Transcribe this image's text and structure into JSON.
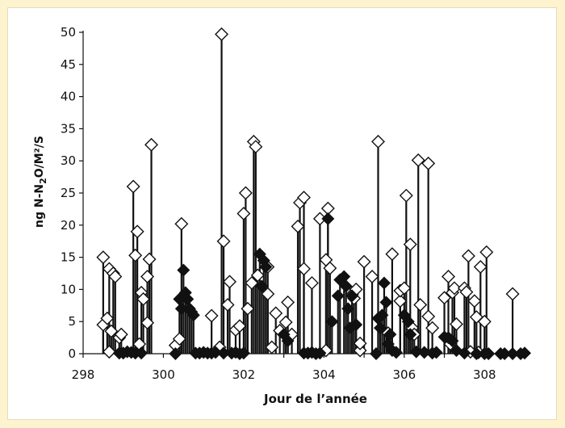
{
  "chart_data": {
    "type": "scatter",
    "title": "",
    "xlabel": "Jour de l’année",
    "ylabel": "ng N-N2O/M²/S",
    "xlim": [
      298,
      309.3
    ],
    "ylim": [
      0,
      50
    ],
    "xticks": [
      298,
      300,
      302,
      304,
      306,
      308
    ],
    "yticks": [
      0,
      5,
      10,
      15,
      20,
      25,
      30,
      35,
      40,
      45,
      50
    ],
    "grid": false,
    "legend": "none",
    "colors": {
      "open": "#ffffff",
      "filled": "#111111",
      "line": "#111111",
      "background": "#fdf3cf"
    },
    "series": [
      {
        "marker": "open-diamond",
        "points": [
          [
            298.5,
            15
          ],
          [
            298.5,
            4.5
          ],
          [
            298.6,
            5.5
          ],
          [
            298.65,
            13.2
          ],
          [
            298.65,
            0.3
          ],
          [
            298.7,
            3.5
          ],
          [
            298.75,
            12.5
          ],
          [
            298.8,
            12
          ],
          [
            298.9,
            2.5
          ],
          [
            298.95,
            3
          ],
          [
            299.25,
            26
          ],
          [
            299.3,
            15.3
          ],
          [
            299.35,
            19
          ],
          [
            299.4,
            1.5
          ],
          [
            299.45,
            9.5
          ],
          [
            299.5,
            8.5
          ],
          [
            299.6,
            4.8
          ],
          [
            299.6,
            12
          ],
          [
            299.65,
            14.7
          ],
          [
            299.7,
            32.5
          ],
          [
            300.3,
            1.3
          ],
          [
            300.4,
            2.3
          ],
          [
            300.45,
            20.2
          ],
          [
            301.2,
            5.9
          ],
          [
            301.4,
            1
          ],
          [
            301.45,
            49.7
          ],
          [
            301.5,
            17.5
          ],
          [
            301.6,
            7.6
          ],
          [
            301.65,
            11.2
          ],
          [
            301.8,
            3.7
          ],
          [
            301.9,
            4.3
          ],
          [
            302.0,
            21.8
          ],
          [
            302.05,
            25
          ],
          [
            302.1,
            7
          ],
          [
            302.2,
            11
          ],
          [
            302.25,
            33
          ],
          [
            302.3,
            32.2
          ],
          [
            302.35,
            12.2
          ],
          [
            302.6,
            13.5
          ],
          [
            302.6,
            9.3
          ],
          [
            302.7,
            1
          ],
          [
            302.8,
            6.3
          ],
          [
            302.9,
            3.6
          ],
          [
            303.05,
            4.9
          ],
          [
            303.1,
            8
          ],
          [
            303.2,
            3
          ],
          [
            303.35,
            19.8
          ],
          [
            303.4,
            23.5
          ],
          [
            303.5,
            24.3
          ],
          [
            303.5,
            13.2
          ],
          [
            303.7,
            11
          ],
          [
            303.9,
            21
          ],
          [
            304.1,
            22.6
          ],
          [
            304.05,
            14.6
          ],
          [
            304.15,
            13.3
          ],
          [
            304.05,
            0.5
          ],
          [
            304.7,
            9.2
          ],
          [
            304.75,
            8.6
          ],
          [
            304.8,
            10
          ],
          [
            304.9,
            0.5
          ],
          [
            304.9,
            1.6
          ],
          [
            305.0,
            14.3
          ],
          [
            305.2,
            12
          ],
          [
            305.35,
            33
          ],
          [
            305.6,
            3.2
          ],
          [
            305.7,
            15.5
          ],
          [
            305.9,
            8.2
          ],
          [
            305.9,
            9.8
          ],
          [
            306.0,
            10.2
          ],
          [
            306.05,
            24.6
          ],
          [
            306.15,
            17
          ],
          [
            306.2,
            4
          ],
          [
            306.25,
            3
          ],
          [
            306.35,
            30.1
          ],
          [
            306.4,
            7.6
          ],
          [
            306.6,
            29.6
          ],
          [
            306.6,
            5.8
          ],
          [
            306.7,
            4
          ],
          [
            307.0,
            8.7
          ],
          [
            307.1,
            12
          ],
          [
            307.15,
            1.5
          ],
          [
            307.2,
            9.5
          ],
          [
            307.25,
            10.2
          ],
          [
            307.3,
            4.6
          ],
          [
            307.5,
            10.2
          ],
          [
            307.55,
            9.6
          ],
          [
            307.6,
            15.2
          ],
          [
            307.65,
            0.3
          ],
          [
            307.75,
            8.2
          ],
          [
            307.8,
            5.7
          ],
          [
            307.85,
            0.2
          ],
          [
            307.9,
            13.5
          ],
          [
            308.0,
            5
          ],
          [
            308.05,
            15.8
          ],
          [
            308.7,
            9.3
          ]
        ]
      },
      {
        "marker": "filled-diamond",
        "points": [
          [
            298.9,
            0.1
          ],
          [
            299.0,
            0.1
          ],
          [
            299.1,
            0.3
          ],
          [
            299.2,
            0.2
          ],
          [
            299.3,
            0.1
          ],
          [
            299.45,
            0.1
          ],
          [
            300.3,
            0
          ],
          [
            300.4,
            8.5
          ],
          [
            300.45,
            7
          ],
          [
            300.5,
            13
          ],
          [
            300.55,
            9.5
          ],
          [
            300.6,
            8.5
          ],
          [
            300.65,
            7
          ],
          [
            300.7,
            6.5
          ],
          [
            300.75,
            6
          ],
          [
            300.8,
            0.1
          ],
          [
            300.9,
            0.1
          ],
          [
            301.0,
            0.2
          ],
          [
            301.1,
            0.1
          ],
          [
            301.2,
            0.1
          ],
          [
            301.3,
            0.2
          ],
          [
            301.5,
            0.1
          ],
          [
            301.7,
            0.1
          ],
          [
            301.8,
            0.2
          ],
          [
            301.9,
            0
          ],
          [
            302.0,
            0.1
          ],
          [
            302.4,
            15.5
          ],
          [
            302.45,
            10.5
          ],
          [
            302.5,
            14.5
          ],
          [
            302.55,
            13.5
          ],
          [
            303.0,
            3
          ],
          [
            303.1,
            2
          ],
          [
            303.5,
            0.1
          ],
          [
            303.6,
            0.1
          ],
          [
            303.7,
            0.2
          ],
          [
            303.8,
            0
          ],
          [
            303.9,
            0.1
          ],
          [
            304.1,
            21
          ],
          [
            304.2,
            5
          ],
          [
            304.35,
            9
          ],
          [
            304.4,
            11.5
          ],
          [
            304.5,
            12
          ],
          [
            304.55,
            10.5
          ],
          [
            304.6,
            7
          ],
          [
            304.65,
            4
          ],
          [
            304.7,
            9
          ],
          [
            304.8,
            4.5
          ],
          [
            305.3,
            0
          ],
          [
            305.35,
            5.5
          ],
          [
            305.4,
            4
          ],
          [
            305.45,
            6
          ],
          [
            305.5,
            11
          ],
          [
            305.55,
            8
          ],
          [
            305.6,
            1.5
          ],
          [
            305.65,
            3
          ],
          [
            305.7,
            0.5
          ],
          [
            305.8,
            0.2
          ],
          [
            306.0,
            6
          ],
          [
            306.1,
            5
          ],
          [
            306.15,
            3
          ],
          [
            306.3,
            0.3
          ],
          [
            306.5,
            0.2
          ],
          [
            306.7,
            0.1
          ],
          [
            306.8,
            0.2
          ],
          [
            307.0,
            2.6
          ],
          [
            307.1,
            2.5
          ],
          [
            307.2,
            2
          ],
          [
            307.3,
            0.5
          ],
          [
            307.5,
            0.1
          ],
          [
            307.8,
            0
          ],
          [
            308.0,
            0
          ],
          [
            308.1,
            0
          ],
          [
            308.4,
            0
          ],
          [
            308.5,
            0
          ],
          [
            308.7,
            0
          ],
          [
            308.9,
            0
          ],
          [
            309.0,
            0.1
          ]
        ]
      }
    ]
  }
}
